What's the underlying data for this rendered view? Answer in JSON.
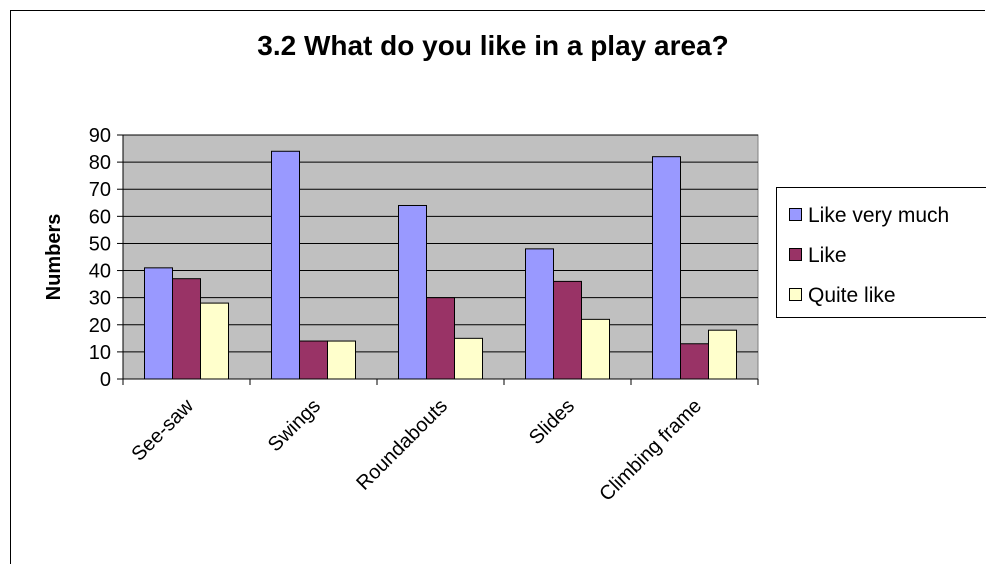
{
  "chart_data": {
    "type": "bar",
    "title": "3.2 What do you like in a play area?",
    "ylabel": "Numbers",
    "xlabel": "",
    "ylim": [
      0,
      90
    ],
    "yticks": [
      0,
      10,
      20,
      30,
      40,
      50,
      60,
      70,
      80,
      90
    ],
    "categories": [
      "See-saw",
      "Swings",
      "Roundabouts",
      "Slides",
      "Climbing frame"
    ],
    "series": [
      {
        "name": "Like very much",
        "color": "#9999ff",
        "values": [
          41,
          84,
          64,
          48,
          82
        ]
      },
      {
        "name": "Like",
        "color": "#993366",
        "values": [
          37,
          14,
          30,
          36,
          13
        ]
      },
      {
        "name": "Quite like",
        "color": "#ffffcc",
        "values": [
          28,
          14,
          15,
          22,
          18
        ]
      }
    ],
    "grid": true,
    "plot_background": "#c0c0c0",
    "legend_position": "right"
  }
}
